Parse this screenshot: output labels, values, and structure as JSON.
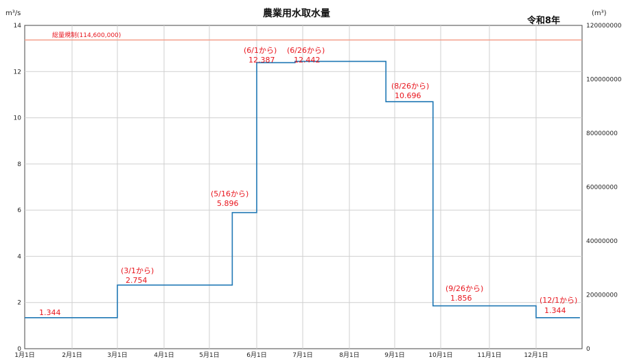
{
  "chart_data": {
    "type": "line",
    "title": "農業用水取水量",
    "subtitle": "令和8年",
    "y_left_unit": "m³/s",
    "y_right_unit": "(m³)",
    "y_left_range": [
      0,
      14
    ],
    "y_left_ticks": [
      "0",
      "2",
      "4",
      "6",
      "8",
      "10",
      "12",
      "14"
    ],
    "y_right_range": [
      0,
      120000000
    ],
    "y_right_ticks": [
      "0",
      "20000000",
      "40000000",
      "60000000",
      "80000000",
      "100000000",
      "120000000"
    ],
    "x_ticks": [
      "1月1日",
      "2月1日",
      "3月1日",
      "4月1日",
      "5月1日",
      "6月1日",
      "7月1日",
      "8月1日",
      "9月1日",
      "10月1日",
      "11月1日",
      "12月1日"
    ],
    "grid": true,
    "colors": {
      "series": "#1f77b4",
      "limit": "#f4a08c",
      "annotation": "#e8141c"
    },
    "total_limit": {
      "label": "総量規制(114,600,000)",
      "value": 114600000
    },
    "series": [
      {
        "values_x": [
          "1月1日",
          "3月1日",
          "5月16日",
          "6月1日",
          "6月26日",
          "8月26日",
          "9月26日",
          "12月1日",
          "12月31日"
        ],
        "values_y": [
          1.344,
          2.754,
          5.896,
          12.387,
          12.442,
          10.696,
          1.856,
          1.344,
          1.344
        ]
      }
    ],
    "annotations": [
      {
        "from": "",
        "value": "1.344"
      },
      {
        "from": "(3/1から)",
        "value": "2.754"
      },
      {
        "from": "(5/16から)",
        "value": "5.896"
      },
      {
        "from": "(6/1から)",
        "value": "12.387"
      },
      {
        "from": "(6/26から)",
        "value": "12.442"
      },
      {
        "from": "(8/26から)",
        "value": "10.696"
      },
      {
        "from": "(9/26から)",
        "value": "1.856"
      },
      {
        "from": "(12/1から)",
        "value": "1.344"
      }
    ]
  }
}
